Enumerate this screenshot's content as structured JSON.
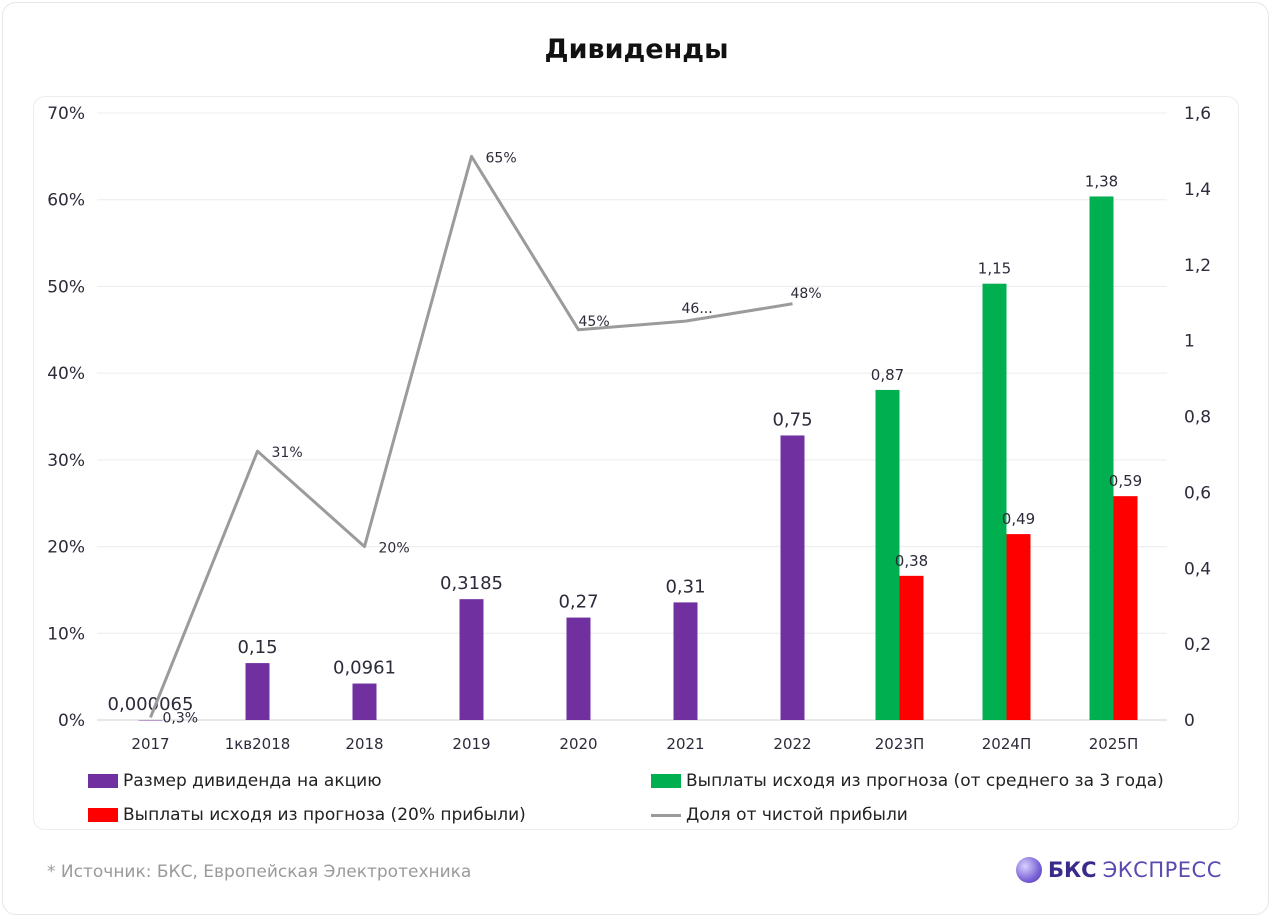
{
  "title": "Дивиденды",
  "source": "*  Источник: БКС, Европейская Электротехника",
  "brand": {
    "part1": "БКС",
    "part2": "ЭКСПРЕСС"
  },
  "legend": {
    "dividend": "Размер дивиденда на акцию",
    "forecast_avg": "Выплаты исходя из прогноза (от среднего за 3 года)",
    "forecast_20": "Выплаты исходя из прогноза (20% прибыли)",
    "payout": "Доля от чистой прибыли"
  },
  "colors": {
    "dividend": "#7030a0",
    "forecast_avg": "#00b050",
    "forecast_20": "#ff0000",
    "payout": "#9b9b9b",
    "grid": "#ececec"
  },
  "chart_data": {
    "type": "bar",
    "categories": [
      "2017",
      "1кв2018",
      "2018",
      "2019",
      "2020",
      "2021",
      "2022",
      "2023П",
      "2024П",
      "2025П"
    ],
    "y_left": {
      "ticks": [
        "0%",
        "10%",
        "20%",
        "30%",
        "40%",
        "50%",
        "60%",
        "70%"
      ],
      "range": [
        0,
        70
      ]
    },
    "y_right": {
      "ticks": [
        "0",
        "0,2",
        "0,4",
        "0,6",
        "0,8",
        "1",
        "1,2",
        "1,4",
        "1,6"
      ],
      "range": [
        0,
        1.6
      ]
    },
    "grid": true,
    "legend_position": "bottom",
    "series": [
      {
        "key": "dividend",
        "type": "bar",
        "axis": "right",
        "values": [
          6.5e-05,
          0.15,
          0.0961,
          0.3185,
          0.27,
          0.31,
          0.75,
          null,
          null,
          null
        ],
        "labels": [
          "0,000065",
          "0,15",
          "0,0961",
          "0,3185",
          "0,27",
          "0,31",
          "0,75",
          "",
          "",
          ""
        ]
      },
      {
        "key": "forecast_avg",
        "type": "bar",
        "axis": "right",
        "values": [
          null,
          null,
          null,
          null,
          null,
          null,
          null,
          0.87,
          1.15,
          1.38
        ],
        "labels": [
          "",
          "",
          "",
          "",
          "",
          "",
          "",
          "0,87",
          "1,15",
          "1,38"
        ]
      },
      {
        "key": "forecast_20",
        "type": "bar",
        "axis": "right",
        "values": [
          null,
          null,
          null,
          null,
          null,
          null,
          null,
          0.38,
          0.49,
          0.59
        ],
        "labels": [
          "",
          "",
          "",
          "",
          "",
          "",
          "",
          "0,38",
          "0,49",
          "0,59"
        ]
      },
      {
        "key": "payout",
        "type": "line",
        "axis": "left",
        "values": [
          0.3,
          31,
          20,
          65,
          45,
          46,
          48,
          null,
          null,
          null
        ],
        "labels": [
          "0,3%",
          "31%",
          "20%",
          "65%",
          "45%",
          "46...",
          "48%",
          "",
          "",
          ""
        ]
      }
    ]
  }
}
